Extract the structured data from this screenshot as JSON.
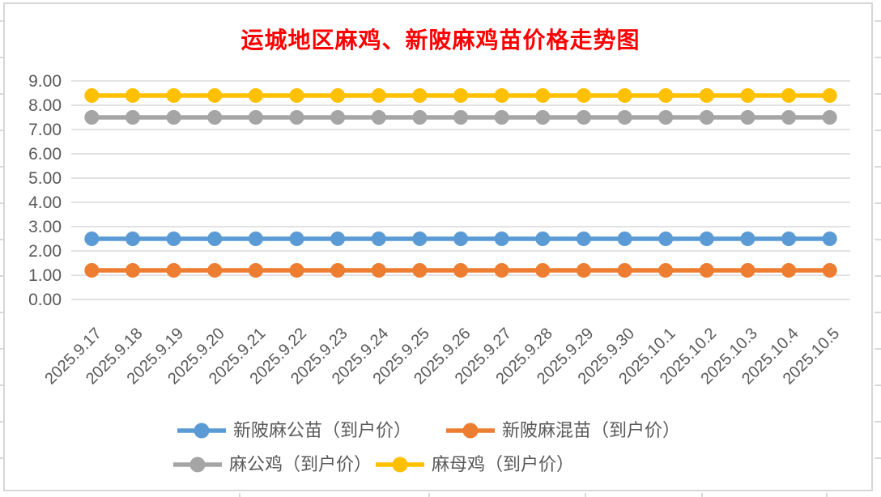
{
  "chart_data": {
    "type": "line",
    "title": "运城地区麻鸡、新陂麻鸡苗价格走势图",
    "title_color": "#ff0000",
    "categories": [
      "2025.9.17",
      "2025.9.18",
      "2025.9.19",
      "2025.9.20",
      "2025.9.21",
      "2025.9.22",
      "2025.9.23",
      "2025.9.24",
      "2025.9.25",
      "2025.9.26",
      "2025.9.27",
      "2025.9.28",
      "2025.9.29",
      "2025.9.30",
      "2025.10.1",
      "2025.10.2",
      "2025.10.3",
      "2025.10.4",
      "2025.10.5"
    ],
    "series": [
      {
        "name": "新陂麻公苗（到户价）",
        "color": "#5B9BD5",
        "values": [
          2.5,
          2.5,
          2.5,
          2.5,
          2.5,
          2.5,
          2.5,
          2.5,
          2.5,
          2.5,
          2.5,
          2.5,
          2.5,
          2.5,
          2.5,
          2.5,
          2.5,
          2.5,
          2.5
        ]
      },
      {
        "name": "新陂麻混苗（到户价）",
        "color": "#ED7D31",
        "values": [
          1.2,
          1.2,
          1.2,
          1.2,
          1.2,
          1.2,
          1.2,
          1.2,
          1.2,
          1.2,
          1.2,
          1.2,
          1.2,
          1.2,
          1.2,
          1.2,
          1.2,
          1.2,
          1.2
        ]
      },
      {
        "name": "麻公鸡（到户价）",
        "color": "#A5A5A5",
        "values": [
          7.5,
          7.5,
          7.5,
          7.5,
          7.5,
          7.5,
          7.5,
          7.5,
          7.5,
          7.5,
          7.5,
          7.5,
          7.5,
          7.5,
          7.5,
          7.5,
          7.5,
          7.5,
          7.5
        ]
      },
      {
        "name": "麻母鸡（到户价）",
        "color": "#FFC000",
        "values": [
          8.4,
          8.4,
          8.4,
          8.4,
          8.4,
          8.4,
          8.4,
          8.4,
          8.4,
          8.4,
          8.4,
          8.4,
          8.4,
          8.4,
          8.4,
          8.4,
          8.4,
          8.4,
          8.4
        ]
      }
    ],
    "y_ticks": [
      "0.00",
      "1.00",
      "2.00",
      "3.00",
      "4.00",
      "5.00",
      "6.00",
      "7.00",
      "8.00",
      "9.00"
    ],
    "ylim": [
      0,
      9
    ],
    "ytick_step": 1,
    "grid": "horizontal",
    "gridline_color": "#d9d9d9",
    "axis_label_color": "#595959",
    "legend_position": "bottom",
    "marker": "circle"
  }
}
